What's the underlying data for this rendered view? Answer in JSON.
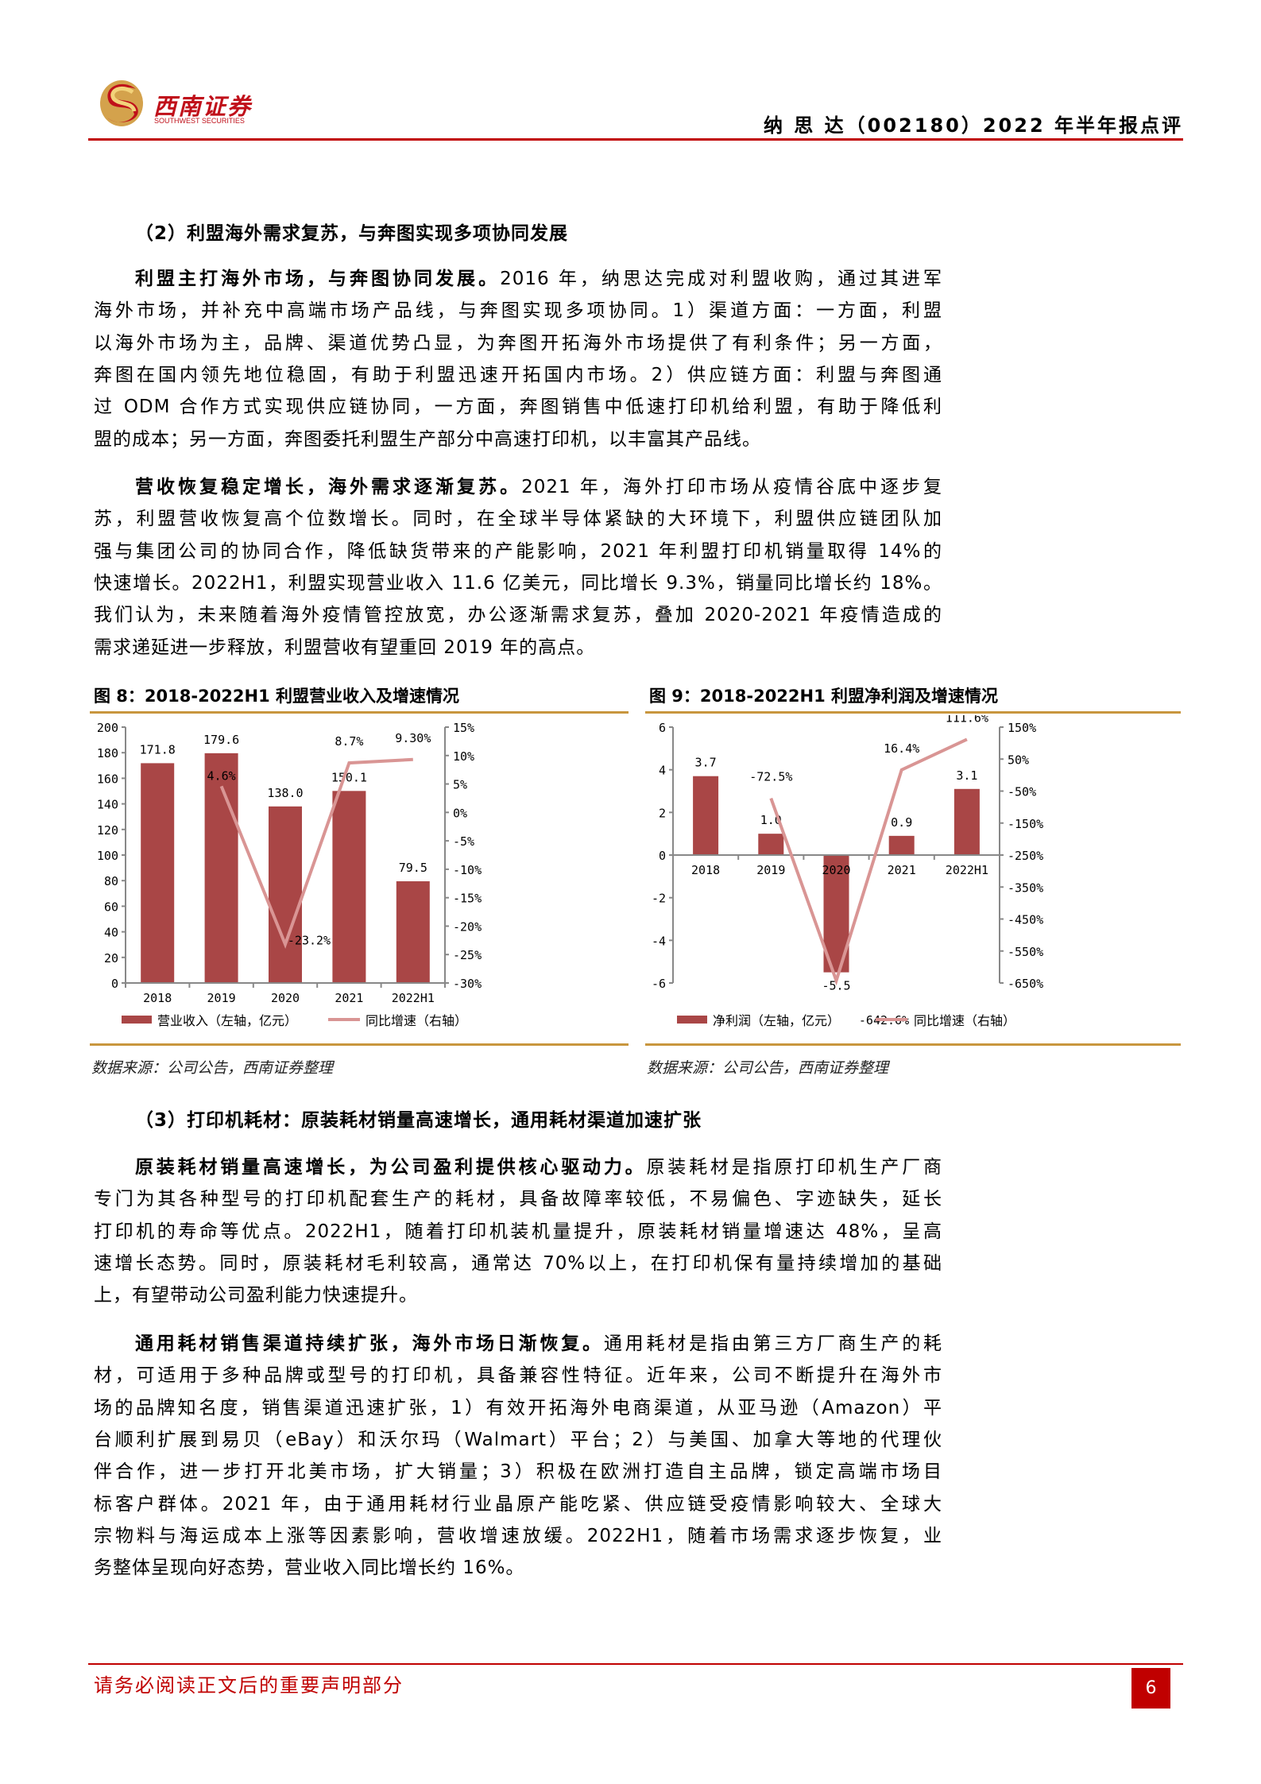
{
  "header": {
    "logo_cn": "西南证券",
    "logo_en": "SOUTHWEST SECURITIES",
    "report_title": "纳 思 达（002180）2022 年半年报点评"
  },
  "colors": {
    "brand_red": "#C00000",
    "gold_rule": "#C8963E",
    "bar": "#A94646",
    "line": "#D99594"
  },
  "section2": {
    "heading": "（2）利盟海外需求复苏，与奔图实现多项协同发展",
    "paragraphs": [
      {
        "lines": [
          {
            "bold": "利盟主打海外市场，与奔图协同发展。",
            "text": "2016 年，纳思达完成对利盟收购，通过其进军"
          },
          {
            "text": "海外市场，并补充中高端市场产品线，与奔图实现多项协同。1）渠道方面：一方面，利盟"
          },
          {
            "text": "以海外市场为主，品牌、渠道优势凸显，为奔图开拓海外市场提供了有利条件；另一方面，"
          },
          {
            "text": "奔图在国内领先地位稳固，有助于利盟迅速开拓国内市场。2）供应链方面：利盟与奔图通"
          },
          {
            "text": "过 ODM 合作方式实现供应链协同，一方面，奔图销售中低速打印机给利盟，有助于降低利"
          },
          {
            "text": "盟的成本；另一方面，奔图委托利盟生产部分中高速打印机，以丰富其产品线。"
          }
        ]
      },
      {
        "lines": [
          {
            "bold": "营收恢复稳定增长，海外需求逐渐复苏。",
            "text": "2021 年，海外打印市场从疫情谷底中逐步复"
          },
          {
            "text": "苏，利盟营收恢复高个位数增长。同时，在全球半导体紧缺的大环境下，利盟供应链团队加"
          },
          {
            "text": "强与集团公司的协同合作，降低缺货带来的产能影响，2021 年利盟打印机销量取得 14%的"
          },
          {
            "text": "快速增长。2022H1，利盟实现营业收入 11.6 亿美元，同比增长 9.3%，销量同比增长约 18%。"
          },
          {
            "text": "我们认为，未来随着海外疫情管控放宽，办公逐渐需求复苏，叠加 2020-2021 年疫情造成的"
          },
          {
            "text": "需求递延进一步释放，利盟营收有望重回 2019 年的高点。"
          }
        ]
      }
    ]
  },
  "figures": [
    {
      "title": "图 8：2018-2022H1 利盟营业收入及增速情况",
      "source": "数据来源：公司公告，西南证券整理"
    },
    {
      "title": "图 9：2018-2022H1 利盟净利润及增速情况",
      "source": "数据来源：公司公告，西南证券整理"
    }
  ],
  "chart_data": [
    {
      "type": "bar+line",
      "categories": [
        "2018",
        "2019",
        "2020",
        "2021",
        "2022H1"
      ],
      "series": [
        {
          "name": "营业收入（左轴，亿元）",
          "type": "bar",
          "axis": "left",
          "values": [
            171.8,
            179.6,
            138.0,
            150.1,
            79.5
          ],
          "labels": [
            "171.8",
            "179.6",
            "138.0",
            "150.1",
            "79.5"
          ]
        },
        {
          "name": "同比增速（右轴）",
          "type": "line",
          "axis": "right",
          "values": [
            null,
            4.6,
            -23.2,
            8.7,
            9.3
          ],
          "labels": [
            "",
            "4.6%",
            "-23.2%",
            "8.7%",
            "9.30%"
          ]
        }
      ],
      "left_axis": {
        "min": 0,
        "max": 200,
        "ticks": [
          "0",
          "20",
          "40",
          "60",
          "80",
          "100",
          "120",
          "140",
          "160",
          "180",
          "200"
        ]
      },
      "right_axis": {
        "min": -30,
        "max": 15,
        "ticks": [
          "-30%",
          "-25%",
          "-20%",
          "-15%",
          "-10%",
          "-5%",
          "0%",
          "5%",
          "10%",
          "15%"
        ]
      },
      "legend": "bottom",
      "grid": false
    },
    {
      "type": "bar+line",
      "categories": [
        "2018",
        "2019",
        "2020",
        "2021",
        "2022H1"
      ],
      "series": [
        {
          "name": "净利润（左轴，亿元）",
          "type": "bar",
          "axis": "left",
          "values": [
            3.7,
            1.0,
            -5.5,
            0.9,
            3.1
          ],
          "labels": [
            "3.7",
            "1.0",
            "-5.5",
            "0.9",
            "3.1"
          ]
        },
        {
          "name": "同比增速（右轴）",
          "type": "line",
          "axis": "right",
          "values": [
            null,
            -72.5,
            -642.6,
            16.4,
            111.6
          ],
          "labels": [
            "",
            "-72.5%",
            "-642.6%",
            "16.4%",
            "111.6%"
          ]
        }
      ],
      "left_axis": {
        "min": -6,
        "max": 6,
        "ticks": [
          "-6",
          "-4",
          "-2",
          "0",
          "2",
          "4",
          "6"
        ]
      },
      "right_axis": {
        "min": -650,
        "max": 150,
        "ticks": [
          "-650%",
          "-550%",
          "-450%",
          "-350%",
          "-250%",
          "-150%",
          "-50%",
          "50%",
          "150%"
        ]
      },
      "legend": "bottom",
      "grid": false
    }
  ],
  "section3": {
    "heading": "（3）打印机耗材：原装耗材销量高速增长，通用耗材渠道加速扩张",
    "paragraphs": [
      {
        "lines": [
          {
            "bold": "原装耗材销量高速增长，为公司盈利提供核心驱动力。",
            "text": "原装耗材是指原打印机生产厂商"
          },
          {
            "text": "专门为其各种型号的打印机配套生产的耗材，具备故障率较低，不易偏色、字迹缺失，延长"
          },
          {
            "text": "打印机的寿命等优点。2022H1，随着打印机装机量提升，原装耗材销量增速达 48%，呈高"
          },
          {
            "text": "速增长态势。同时，原装耗材毛利较高，通常达 70%以上，在打印机保有量持续增加的基础"
          },
          {
            "text": "上，有望带动公司盈利能力快速提升。"
          }
        ]
      },
      {
        "lines": [
          {
            "bold": "通用耗材销售渠道持续扩张，海外市场日渐恢复。",
            "text": "通用耗材是指由第三方厂商生产的耗"
          },
          {
            "text": "材，可适用于多种品牌或型号的打印机，具备兼容性特征。近年来，公司不断提升在海外市"
          },
          {
            "text": "场的品牌知名度，销售渠道迅速扩张，1）有效开拓海外电商渠道，从亚马逊（Amazon）平"
          },
          {
            "text": "台顺利扩展到易贝（eBay）和沃尔玛（Walmart）平台；2）与美国、加拿大等地的代理伙"
          },
          {
            "text": "伴合作，进一步打开北美市场，扩大销量；3）积极在欧洲打造自主品牌，锁定高端市场目"
          },
          {
            "text": "标客户群体。2021 年，由于通用耗材行业晶原产能吃紧、供应链受疫情影响较大、全球大"
          },
          {
            "text": "宗物料与海运成本上涨等因素影响，营收增速放缓。2022H1，随着市场需求逐步恢复，业"
          },
          {
            "text": "务整体呈现向好态势，营业收入同比增长约 16%。"
          }
        ]
      }
    ]
  },
  "footer": {
    "disclaimer": "请务必阅读正文后的重要声明部分",
    "page_number": "6"
  }
}
